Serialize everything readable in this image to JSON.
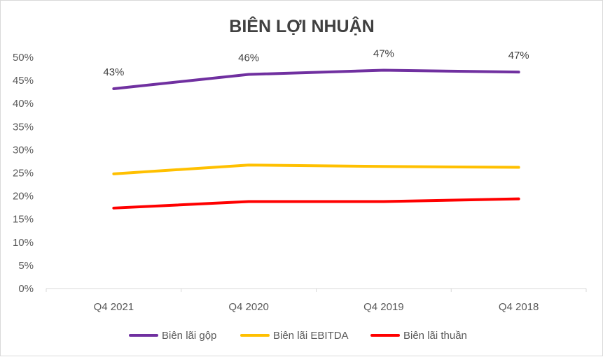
{
  "chart_data": {
    "type": "line",
    "title": "BIÊN LỢI NHUẬN",
    "xlabel": "",
    "ylabel": "",
    "categories": [
      "Q4 2021",
      "Q4 2020",
      "Q4 2019",
      "Q4 2018"
    ],
    "ylim": [
      0,
      50
    ],
    "y_ticks": [
      0,
      5,
      10,
      15,
      20,
      25,
      30,
      35,
      40,
      45,
      50
    ],
    "y_tick_suffix": "%",
    "grid": false,
    "legend_position": "bottom",
    "series": [
      {
        "name": "Biên lãi gộp",
        "color": "#7030a0",
        "values": [
          43.2,
          46.3,
          47.2,
          46.8
        ],
        "data_labels": [
          "43%",
          "46%",
          "47%",
          "47%"
        ]
      },
      {
        "name": "Biên lãi EBITDA",
        "color": "#ffc000",
        "values": [
          24.8,
          26.7,
          26.4,
          26.2
        ]
      },
      {
        "name": "Biên lãi thuần",
        "color": "#ff0000",
        "values": [
          17.4,
          18.8,
          18.8,
          19.4
        ]
      }
    ]
  }
}
